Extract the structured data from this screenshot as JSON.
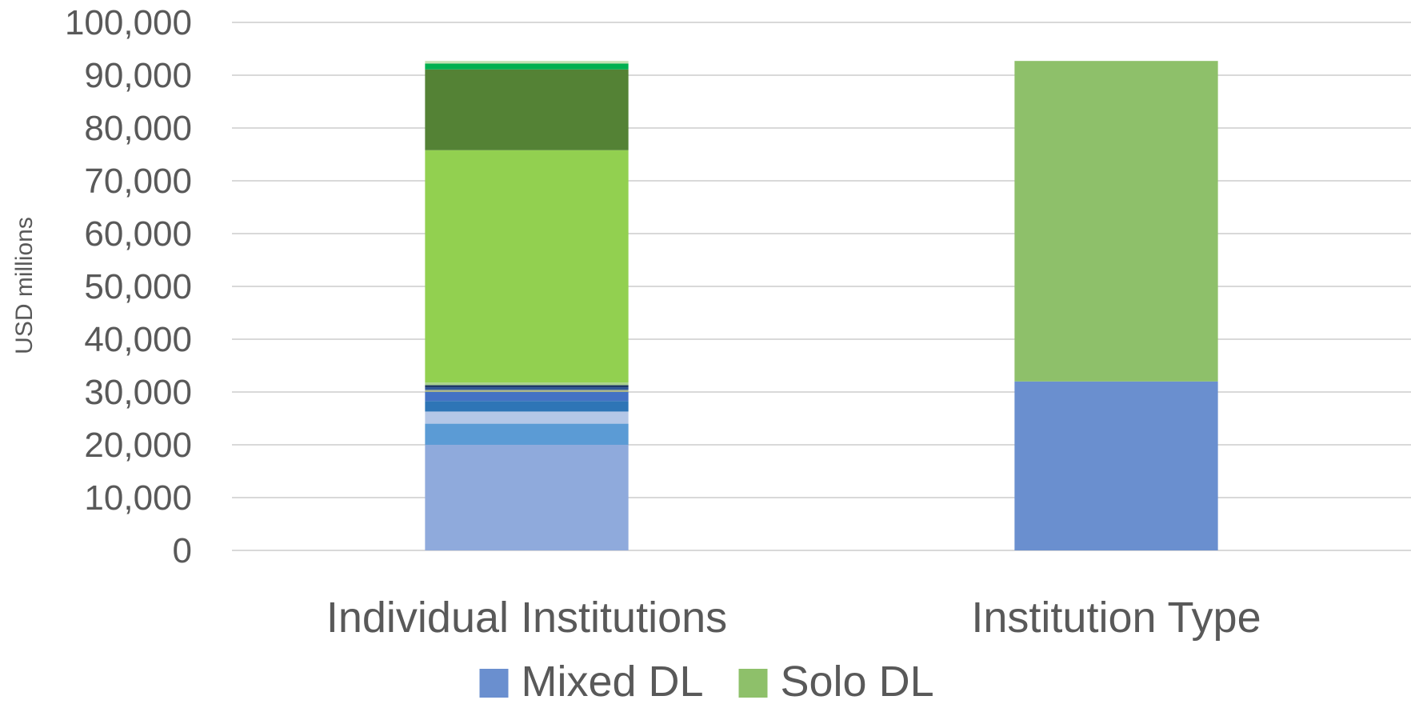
{
  "chart_data": {
    "type": "bar",
    "stacked": true,
    "title": "",
    "xlabel": "",
    "ylabel": "USD millions",
    "ylim": [
      0,
      100000
    ],
    "y_ticks": [
      0,
      10000,
      20000,
      30000,
      40000,
      50000,
      60000,
      70000,
      80000,
      90000,
      100000
    ],
    "y_tick_labels": [
      "0",
      "10,000",
      "20,000",
      "30,000",
      "40,000",
      "50,000",
      "60,000",
      "70,000",
      "80,000",
      "90,000",
      "100,000"
    ],
    "grid": true,
    "legend_position": "bottom",
    "legend": [
      {
        "label": "Mixed DL",
        "color": "#6a8fcf"
      },
      {
        "label": "Solo DL",
        "color": "#8ec06a"
      }
    ],
    "categories": [
      "Individual Institutions",
      "Institution Type"
    ],
    "stacks": [
      {
        "category": "Individual Institutions",
        "segments": [
          {
            "value": 20000,
            "color": "#8faadc"
          },
          {
            "value": 4000,
            "color": "#5b9bd5"
          },
          {
            "value": 2300,
            "color": "#b4c7e7"
          },
          {
            "value": 2000,
            "color": "#2e75b6"
          },
          {
            "value": 1700,
            "color": "#4472c4"
          },
          {
            "value": 400,
            "color": "#a9b48a"
          },
          {
            "value": 500,
            "color": "#2f5597"
          },
          {
            "value": 400,
            "color": "#1f3864"
          },
          {
            "value": 500,
            "color": "#a9d18e"
          },
          {
            "value": 44000,
            "color": "#92d050"
          },
          {
            "value": 15300,
            "color": "#548235"
          },
          {
            "value": 1100,
            "color": "#00b050"
          },
          {
            "value": 500,
            "color": "#c5e0b4"
          }
        ]
      },
      {
        "category": "Institution Type",
        "segments": [
          {
            "value": 32000,
            "color": "#6a8fcf",
            "series": "Mixed DL"
          },
          {
            "value": 60700,
            "color": "#8ec06a",
            "series": "Solo DL"
          }
        ]
      }
    ]
  }
}
